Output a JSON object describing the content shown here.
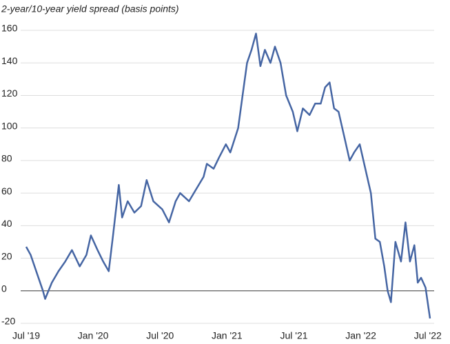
{
  "chart_data": {
    "type": "line",
    "title": "2-year/10-year yield spread (basis points)",
    "x": [
      0,
      0.4,
      1.0,
      1.5,
      1.7,
      2.3,
      2.9,
      3.5,
      4.1,
      4.8,
      5.4,
      5.8,
      6.4,
      6.9,
      7.4,
      7.8,
      8.3,
      8.6,
      9.1,
      9.7,
      10.3,
      10.8,
      11.4,
      12.2,
      12.8,
      13.4,
      13.8,
      14.6,
      15.2,
      15.9,
      16.2,
      16.8,
      17.3,
      17.9,
      18.3,
      19.0,
      19.4,
      19.8,
      20.2,
      20.6,
      21.0,
      21.4,
      21.9,
      22.3,
      22.8,
      23.3,
      23.9,
      24.3,
      24.8,
      25.4,
      25.9,
      26.4,
      26.8,
      27.2,
      27.6,
      28.0,
      28.5,
      29.0,
      29.4,
      29.9,
      30.4,
      30.9,
      31.3,
      31.7,
      32.1,
      32.4,
      32.7,
      33.1,
      33.6,
      34.0,
      34.4,
      34.8,
      35.1,
      35.4,
      35.8,
      36.2
    ],
    "series": [
      {
        "name": "2-year/10-year yield spread",
        "color": "#4565a3",
        "values": [
          27,
          22,
          10,
          0,
          -5,
          5,
          12,
          18,
          25,
          15,
          22,
          34,
          25,
          18,
          12,
          35,
          65,
          45,
          55,
          48,
          52,
          68,
          55,
          50,
          42,
          55,
          60,
          55,
          62,
          70,
          78,
          75,
          82,
          90,
          85,
          100,
          120,
          140,
          148,
          158,
          138,
          148,
          140,
          150,
          140,
          120,
          110,
          98,
          112,
          108,
          115,
          115,
          125,
          128,
          112,
          110,
          95,
          80,
          85,
          90,
          75,
          60,
          32,
          30,
          15,
          0,
          -7,
          30,
          18,
          42,
          18,
          28,
          5,
          8,
          2,
          -17
        ]
      }
    ],
    "xlim": [
      0,
      36.2
    ],
    "xticks": [
      {
        "value": 0,
        "label": "Jul '19"
      },
      {
        "value": 6,
        "label": "Jan '20"
      },
      {
        "value": 12,
        "label": "Jul '20"
      },
      {
        "value": 18,
        "label": "Jan '21"
      },
      {
        "value": 24,
        "label": "Jul '21"
      },
      {
        "value": 30,
        "label": "Jan '22"
      },
      {
        "value": 36,
        "label": "Jul '22"
      }
    ],
    "ylim": [
      -20,
      160
    ],
    "yticks": [
      -20,
      0,
      20,
      40,
      60,
      80,
      100,
      120,
      140,
      160
    ],
    "grid": true
  }
}
